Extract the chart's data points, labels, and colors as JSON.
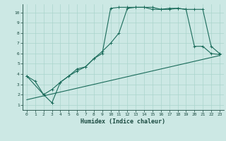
{
  "xlabel": "Humidex (Indice chaleur)",
  "bg_color": "#cce8e4",
  "grid_color": "#aad4cc",
  "line_color": "#1a6b5a",
  "xlim": [
    -0.5,
    23.5
  ],
  "ylim": [
    0.5,
    10.8
  ],
  "line1_x": [
    0,
    1,
    2,
    3,
    4,
    5,
    6,
    7,
    8,
    9,
    10,
    11,
    12,
    13,
    14,
    15,
    16,
    17,
    18,
    19,
    20,
    21,
    22,
    23
  ],
  "line1_y": [
    3.8,
    3.3,
    2.0,
    1.2,
    3.2,
    3.8,
    4.5,
    4.7,
    5.5,
    6.0,
    10.4,
    10.5,
    10.5,
    10.5,
    10.5,
    10.3,
    10.3,
    10.4,
    10.4,
    10.3,
    6.7,
    6.7,
    6.0,
    5.9
  ],
  "line2_x": [
    0,
    2,
    3,
    4,
    5,
    6,
    7,
    8,
    9,
    10,
    11,
    12,
    13,
    14,
    15,
    16,
    17,
    18,
    19,
    20,
    21,
    22,
    23
  ],
  "line2_y": [
    3.8,
    2.0,
    2.5,
    3.2,
    3.8,
    4.3,
    4.7,
    5.5,
    6.2,
    7.0,
    8.0,
    10.4,
    10.5,
    10.5,
    10.5,
    10.3,
    10.3,
    10.4,
    10.3,
    10.3,
    10.3,
    6.7,
    6.0
  ],
  "line3_x": [
    0,
    23
  ],
  "line3_y": [
    1.5,
    5.8
  ],
  "xticks": [
    0,
    1,
    2,
    3,
    4,
    5,
    6,
    7,
    8,
    9,
    10,
    11,
    12,
    13,
    14,
    15,
    16,
    17,
    18,
    19,
    20,
    21,
    22,
    23
  ],
  "yticks": [
    1,
    2,
    3,
    4,
    5,
    6,
    7,
    8,
    9,
    10
  ]
}
